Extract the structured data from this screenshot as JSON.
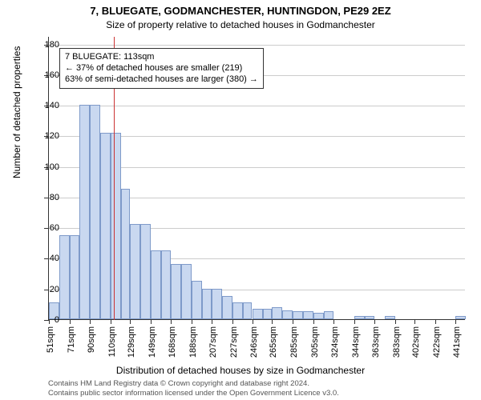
{
  "title_main": "7, BLUEGATE, GODMANCHESTER, HUNTINGDON, PE29 2EZ",
  "title_sub": "Size of property relative to detached houses in Godmanchester",
  "y_axis_label": "Number of detached properties",
  "x_axis_label": "Distribution of detached houses by size in Godmanchester",
  "chart": {
    "type": "histogram",
    "bar_fill": "#c9d8f0",
    "bar_stroke": "#7e9ac9",
    "grid_color": "#cccccc",
    "axis_color": "#333333",
    "background": "#ffffff",
    "bar_width_ratio": 1.0,
    "ylim": [
      0,
      185
    ],
    "yticks": [
      0,
      20,
      40,
      60,
      80,
      100,
      120,
      140,
      160,
      180
    ],
    "x_max_display": 451,
    "x_display_start": 51,
    "bars": [
      {
        "label": "51sqm",
        "start": 51,
        "end": 61,
        "value": 11
      },
      {
        "label": "",
        "start": 61,
        "end": 71,
        "value": 55
      },
      {
        "label": "71sqm",
        "start": 71,
        "end": 80,
        "value": 55
      },
      {
        "label": "",
        "start": 80,
        "end": 90,
        "value": 140
      },
      {
        "label": "90sqm",
        "start": 90,
        "end": 100,
        "value": 140
      },
      {
        "label": "",
        "start": 100,
        "end": 110,
        "value": 122
      },
      {
        "label": "110sqm",
        "start": 110,
        "end": 120,
        "value": 122
      },
      {
        "label": "",
        "start": 120,
        "end": 129,
        "value": 85
      },
      {
        "label": "129sqm",
        "start": 129,
        "end": 139,
        "value": 62
      },
      {
        "label": "",
        "start": 139,
        "end": 149,
        "value": 62
      },
      {
        "label": "149sqm",
        "start": 149,
        "end": 159,
        "value": 45
      },
      {
        "label": "",
        "start": 159,
        "end": 168,
        "value": 45
      },
      {
        "label": "168sqm",
        "start": 168,
        "end": 178,
        "value": 36
      },
      {
        "label": "",
        "start": 178,
        "end": 188,
        "value": 36
      },
      {
        "label": "188sqm",
        "start": 188,
        "end": 198,
        "value": 25
      },
      {
        "label": "",
        "start": 198,
        "end": 207,
        "value": 20
      },
      {
        "label": "207sqm",
        "start": 207,
        "end": 217,
        "value": 20
      },
      {
        "label": "",
        "start": 217,
        "end": 227,
        "value": 15
      },
      {
        "label": "227sqm",
        "start": 227,
        "end": 237,
        "value": 11
      },
      {
        "label": "",
        "start": 237,
        "end": 246,
        "value": 11
      },
      {
        "label": "246sqm",
        "start": 246,
        "end": 256,
        "value": 7
      },
      {
        "label": "",
        "start": 256,
        "end": 265,
        "value": 7
      },
      {
        "label": "265sqm",
        "start": 265,
        "end": 275,
        "value": 8
      },
      {
        "label": "",
        "start": 275,
        "end": 285,
        "value": 6
      },
      {
        "label": "285sqm",
        "start": 285,
        "end": 295,
        "value": 5
      },
      {
        "label": "",
        "start": 295,
        "end": 305,
        "value": 5
      },
      {
        "label": "305sqm",
        "start": 305,
        "end": 315,
        "value": 4
      },
      {
        "label": "",
        "start": 315,
        "end": 324,
        "value": 5
      },
      {
        "label": "324sqm",
        "start": 324,
        "end": 334,
        "value": 0
      },
      {
        "label": "",
        "start": 334,
        "end": 344,
        "value": 0
      },
      {
        "label": "344sqm",
        "start": 344,
        "end": 354,
        "value": 2
      },
      {
        "label": "",
        "start": 354,
        "end": 363,
        "value": 2
      },
      {
        "label": "363sqm",
        "start": 363,
        "end": 373,
        "value": 0
      },
      {
        "label": "",
        "start": 373,
        "end": 383,
        "value": 2
      },
      {
        "label": "383sqm",
        "start": 383,
        "end": 393,
        "value": 0
      },
      {
        "label": "",
        "start": 393,
        "end": 402,
        "value": 0
      },
      {
        "label": "402sqm",
        "start": 402,
        "end": 412,
        "value": 0
      },
      {
        "label": "",
        "start": 412,
        "end": 422,
        "value": 0
      },
      {
        "label": "422sqm",
        "start": 422,
        "end": 432,
        "value": 0
      },
      {
        "label": "",
        "start": 432,
        "end": 441,
        "value": 0
      },
      {
        "label": "441sqm",
        "start": 441,
        "end": 451,
        "value": 2
      }
    ]
  },
  "marker": {
    "x_value": 113,
    "color": "#cc3333"
  },
  "callout": {
    "line1": "7 BLUEGATE: 113sqm",
    "line2": "← 37% of detached houses are smaller (219)",
    "line3": "63% of semi-detached houses are larger (380) →"
  },
  "attribution": {
    "line1": "Contains HM Land Registry data © Crown copyright and database right 2024.",
    "line2": "Contains public sector information licensed under the Open Government Licence v3.0."
  },
  "fonts": {
    "title_main_size": 13,
    "title_sub_size": 12,
    "axis_label_size": 12,
    "tick_label_size": 11,
    "callout_size": 11,
    "attribution_size": 9.5
  }
}
